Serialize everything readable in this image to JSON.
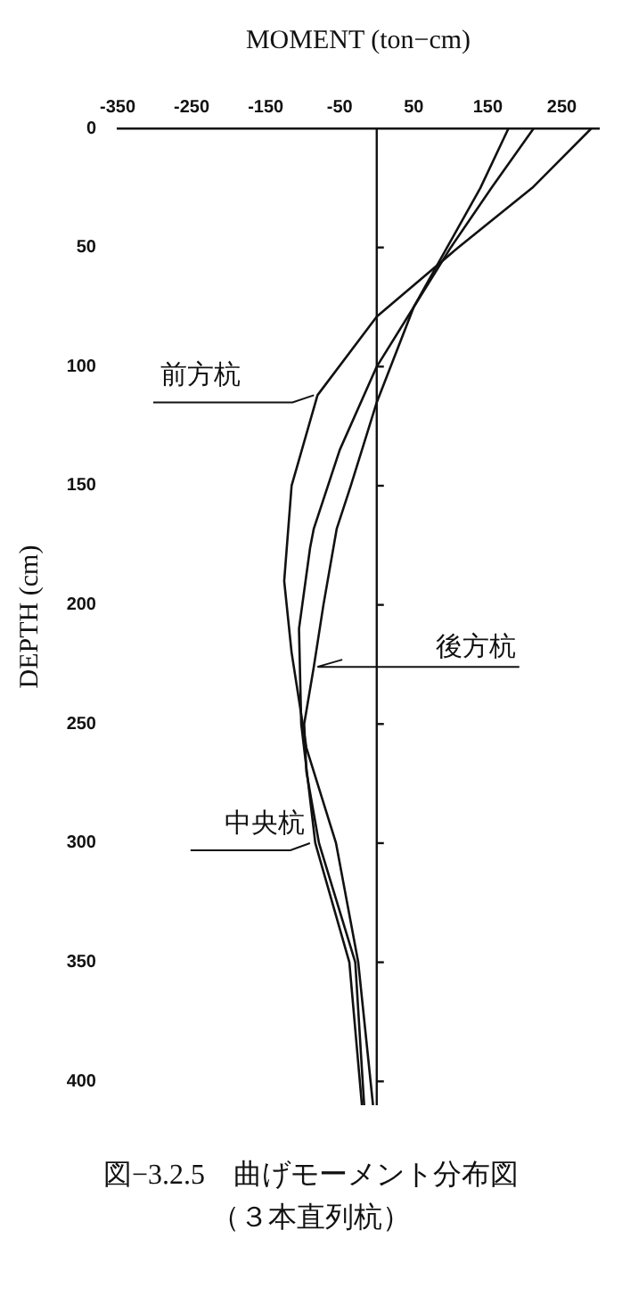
{
  "chart_data": {
    "type": "line",
    "xlabel": "MOMENT (ton−cm)",
    "ylabel": "DEPTH (cm)",
    "xlim": [
      -350,
      300
    ],
    "xticks": [
      -350,
      -250,
      -150,
      -50,
      50,
      150,
      250
    ],
    "ylim": [
      410,
      0
    ],
    "yticks": [
      0,
      50,
      100,
      150,
      200,
      250,
      300,
      350,
      400
    ],
    "grid": false,
    "legend": false,
    "marker": "none",
    "line_style": "solid",
    "ref_lines": [
      {
        "axis": "x",
        "value": 0
      }
    ],
    "series": [
      {
        "name": "前方杭",
        "color": "#111111",
        "x": [
          290,
          210,
          110,
          0,
          -80,
          -115,
          -125,
          -115,
          -95,
          -55,
          -25,
          -5
        ],
        "values": [
          0,
          25,
          50,
          79,
          112,
          150,
          190,
          220,
          260,
          300,
          350,
          410
        ]
      },
      {
        "name": "中央杭",
        "color": "#111111",
        "x": [
          212,
          155,
          100,
          50,
          0,
          -50,
          -85,
          -90,
          -105,
          -102,
          -83,
          -37,
          -20
        ],
        "values": [
          0,
          25,
          50,
          75,
          100,
          135,
          168,
          176,
          210,
          250,
          300,
          350,
          410
        ]
      },
      {
        "name": "後方杭",
        "color": "#111111",
        "x": [
          178,
          140,
          95,
          50,
          0,
          -35,
          -54,
          -72,
          -85,
          -98,
          -95,
          -78,
          -29,
          -17
        ],
        "values": [
          0,
          25,
          50,
          75,
          115,
          150,
          168,
          200,
          226,
          250,
          270,
          300,
          350,
          410
        ]
      }
    ],
    "annotations": [
      "図−3.2.5　曲げモーメント分布図",
      "（３本直列杭）"
    ]
  }
}
